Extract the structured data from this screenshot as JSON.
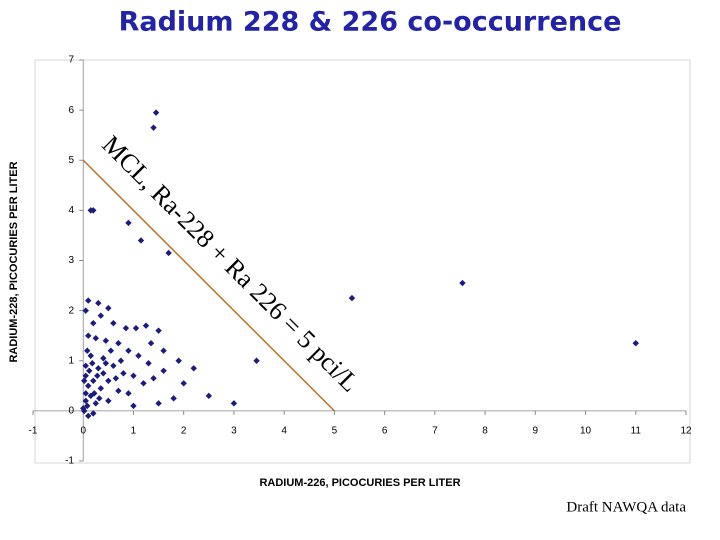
{
  "chart_data": {
    "type": "scatter",
    "title": "Radium 228 & 226 co-occurrence",
    "x_label": "RADIUM-226, PICOCURIES PER LITER",
    "y_label": "RADIUM-228, PICOCURIES PER LITER",
    "annotation": "MCL, Ra-228 + Ra 226 = 5 pci/L",
    "footer": "Draft NAWQA data",
    "xlim": [
      -1,
      12
    ],
    "ylim": [
      -1,
      7
    ],
    "xticks": [
      -1,
      0,
      1,
      2,
      3,
      4,
      5,
      6,
      7,
      8,
      9,
      10,
      11,
      12
    ],
    "yticks": [
      -1,
      0,
      1,
      2,
      3,
      4,
      5,
      6,
      7
    ],
    "reference_line": {
      "color": "#b8732a",
      "x": [
        0,
        5
      ],
      "y": [
        5,
        0
      ]
    },
    "series": [
      {
        "color": "#1c1c7a",
        "x": [
          1.45,
          1.4,
          0.15,
          0.2,
          0.9,
          1.15,
          1.7,
          5.35,
          7.55,
          11.0,
          3.45,
          2.2,
          2.5,
          3.0,
          2.0,
          1.8,
          1.5,
          1.6,
          1.5,
          1.25,
          1.05,
          0.85,
          0.6,
          0.35,
          0.3,
          0.5,
          0.2,
          0.1,
          0.25,
          0.45,
          0.7,
          0.55,
          0.9,
          1.1,
          1.3,
          0.4,
          0.15,
          0.05,
          0.3,
          0.6,
          0.8,
          1.0,
          1.2,
          0.5,
          0.2,
          0.1,
          0.35,
          0.7,
          0.9,
          0.15,
          0.05,
          0.25,
          0.5,
          1.0,
          0.02,
          0.1,
          0.2,
          0.0,
          0.05,
          0.12,
          0.18,
          0.08,
          0.28,
          0.4,
          0.22,
          0.32,
          0.65,
          0.75,
          1.4,
          1.9,
          1.35,
          0.05,
          0.1,
          1.6,
          0.05,
          0.02,
          0.08,
          0.45
        ],
        "values": [
          5.95,
          5.65,
          4.0,
          4.0,
          3.75,
          3.4,
          3.15,
          2.25,
          2.55,
          1.35,
          1.0,
          0.85,
          0.3,
          0.15,
          0.55,
          0.25,
          0.15,
          1.2,
          1.6,
          1.7,
          1.65,
          1.65,
          1.75,
          1.9,
          2.15,
          2.05,
          1.75,
          1.5,
          1.45,
          1.4,
          1.35,
          1.2,
          1.2,
          1.1,
          0.95,
          1.05,
          1.1,
          0.9,
          0.85,
          0.9,
          0.75,
          0.7,
          0.55,
          0.6,
          0.6,
          0.5,
          0.45,
          0.4,
          0.35,
          0.3,
          0.2,
          0.15,
          0.2,
          0.1,
          0.0,
          -0.1,
          -0.05,
          0.05,
          0.7,
          0.8,
          0.95,
          1.2,
          0.7,
          0.75,
          0.35,
          0.25,
          0.65,
          1.0,
          0.65,
          1.0,
          1.35,
          2.0,
          2.2,
          0.8,
          0.35,
          0.6,
          0.1,
          0.95
        ]
      }
    ]
  }
}
